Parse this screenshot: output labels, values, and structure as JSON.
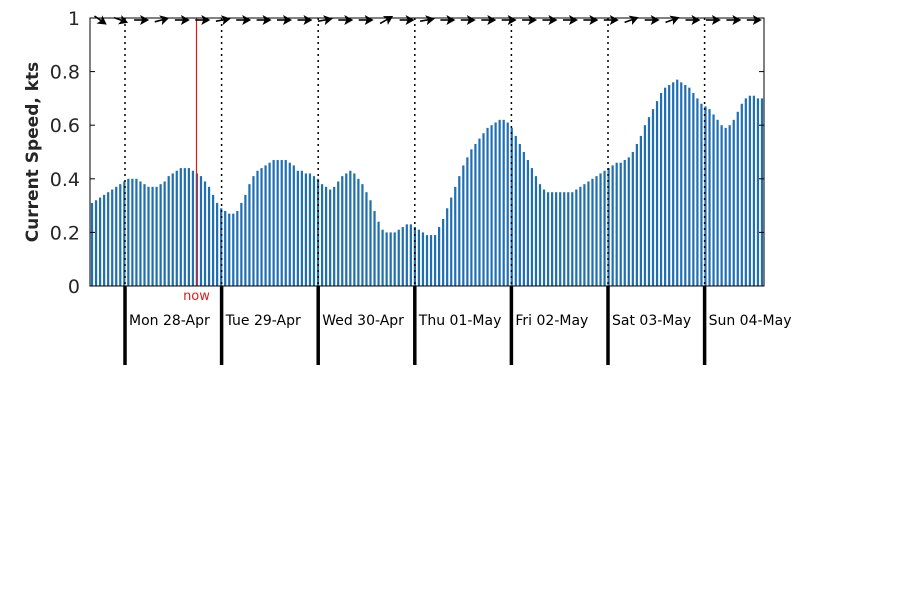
{
  "chart_data": {
    "type": "bar",
    "title": "",
    "xlabel": "",
    "ylabel": "Current Speed, kts",
    "ylim": [
      0,
      1
    ],
    "yticks": [
      0,
      0.2,
      0.4,
      0.6,
      0.8,
      1
    ],
    "ytick_labels": [
      "0",
      "0.2",
      "0.4",
      "0.6",
      "0.8",
      "1"
    ],
    "grid": false,
    "bar_color": "#1f6fb2",
    "day_labels": [
      "Mon 28-Apr",
      "Tue 29-Apr",
      "Wed 30-Apr",
      "Thu 01-May",
      "Fri 02-May",
      "Sat 03-May",
      "Sun 04-May"
    ],
    "now_marker": {
      "label": "now",
      "color": "#e0191e",
      "position_days": 0.74
    },
    "series": [
      {
        "values": [
          0.31,
          0.32,
          0.33,
          0.34,
          0.35,
          0.36,
          0.37,
          0.38,
          0.39,
          0.4,
          0.4,
          0.4,
          0.39,
          0.38,
          0.37,
          0.37,
          0.37,
          0.38,
          0.39,
          0.41,
          0.42,
          0.43,
          0.44,
          0.44,
          0.44,
          0.43,
          0.42,
          0.41,
          0.39,
          0.37,
          0.34,
          0.31,
          0.29,
          0.28,
          0.27,
          0.27,
          0.28,
          0.31,
          0.34,
          0.38,
          0.41,
          0.43,
          0.44,
          0.45,
          0.46,
          0.47,
          0.47,
          0.47,
          0.47,
          0.46,
          0.45,
          0.43,
          0.43,
          0.42,
          0.42,
          0.41,
          0.4,
          0.38,
          0.37,
          0.36,
          0.37,
          0.39,
          0.41,
          0.42,
          0.43,
          0.42,
          0.4,
          0.38,
          0.35,
          0.32,
          0.28,
          0.24,
          0.21,
          0.2,
          0.2,
          0.2,
          0.21,
          0.22,
          0.23,
          0.23,
          0.22,
          0.21,
          0.2,
          0.19,
          0.19,
          0.19,
          0.22,
          0.25,
          0.29,
          0.33,
          0.37,
          0.41,
          0.45,
          0.48,
          0.51,
          0.53,
          0.55,
          0.57,
          0.59,
          0.6,
          0.61,
          0.62,
          0.62,
          0.61,
          0.59,
          0.56,
          0.53,
          0.5,
          0.47,
          0.44,
          0.41,
          0.38,
          0.36,
          0.35,
          0.35,
          0.35,
          0.35,
          0.35,
          0.35,
          0.35,
          0.36,
          0.37,
          0.38,
          0.39,
          0.4,
          0.41,
          0.42,
          0.43,
          0.44,
          0.45,
          0.46,
          0.46,
          0.47,
          0.48,
          0.5,
          0.53,
          0.56,
          0.6,
          0.63,
          0.66,
          0.69,
          0.72,
          0.74,
          0.75,
          0.76,
          0.77,
          0.76,
          0.75,
          0.74,
          0.72,
          0.7,
          0.68,
          0.67,
          0.66,
          0.64,
          0.62,
          0.6,
          0.59,
          0.6,
          0.62,
          0.65,
          0.68,
          0.7,
          0.71,
          0.71,
          0.7,
          0.7
        ]
      }
    ],
    "direction_arrows_deg": [
      35,
      20,
      0,
      -15,
      0,
      0,
      -10,
      0,
      0,
      0,
      0,
      -10,
      0,
      0,
      -30,
      0,
      -10,
      0,
      0,
      0,
      0,
      0,
      0,
      0,
      0,
      0,
      -20,
      0,
      -20,
      0,
      0,
      0,
      0
    ]
  }
}
